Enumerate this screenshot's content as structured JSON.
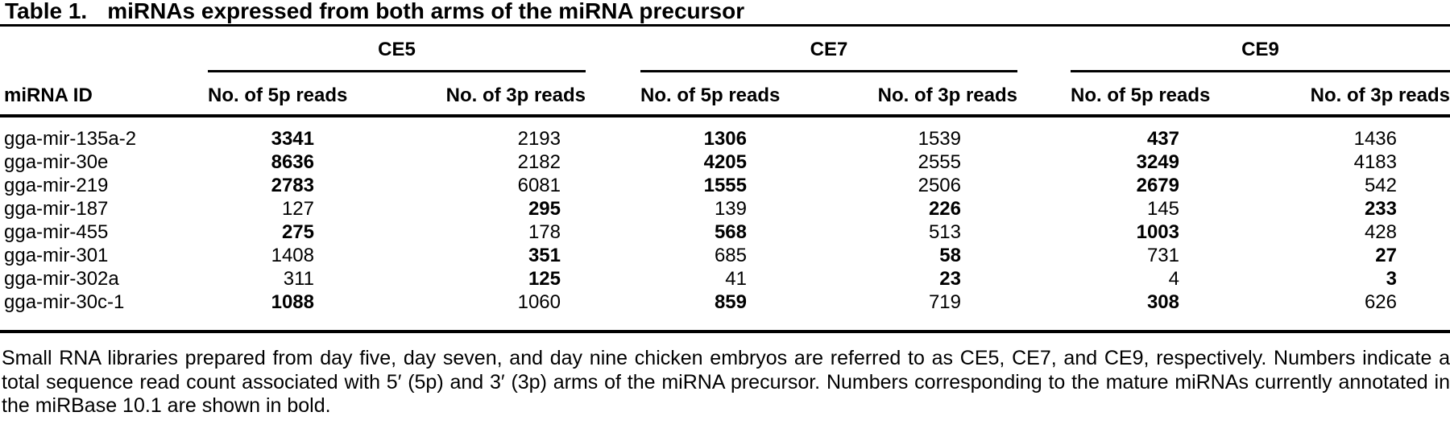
{
  "colors": {
    "text": "#000000",
    "background": "#ffffff",
    "rules": "#000000"
  },
  "title": {
    "label": "Table 1.",
    "text": "miRNAs expressed from both arms of the miRNA precursor"
  },
  "table": {
    "id_header": "miRNA ID",
    "groups": [
      {
        "label": "CE5"
      },
      {
        "label": "CE7"
      },
      {
        "label": "CE9"
      }
    ],
    "subheaders": {
      "reads_5p": "No. of 5p reads",
      "reads_3p": "No. of 3p reads"
    },
    "rows": [
      {
        "id": "gga-mir-135a-2",
        "values": [
          {
            "v": "3341",
            "bold": true
          },
          {
            "v": "2193",
            "bold": false
          },
          {
            "v": "1306",
            "bold": true
          },
          {
            "v": "1539",
            "bold": false
          },
          {
            "v": "437",
            "bold": true
          },
          {
            "v": "1436",
            "bold": false
          }
        ]
      },
      {
        "id": "gga-mir-30e",
        "values": [
          {
            "v": "8636",
            "bold": true
          },
          {
            "v": "2182",
            "bold": false
          },
          {
            "v": "4205",
            "bold": true
          },
          {
            "v": "2555",
            "bold": false
          },
          {
            "v": "3249",
            "bold": true
          },
          {
            "v": "4183",
            "bold": false
          }
        ]
      },
      {
        "id": "gga-mir-219",
        "values": [
          {
            "v": "2783",
            "bold": true
          },
          {
            "v": "6081",
            "bold": false
          },
          {
            "v": "1555",
            "bold": true
          },
          {
            "v": "2506",
            "bold": false
          },
          {
            "v": "2679",
            "bold": true
          },
          {
            "v": "542",
            "bold": false
          }
        ]
      },
      {
        "id": "gga-mir-187",
        "values": [
          {
            "v": "127",
            "bold": false
          },
          {
            "v": "295",
            "bold": true
          },
          {
            "v": "139",
            "bold": false
          },
          {
            "v": "226",
            "bold": true
          },
          {
            "v": "145",
            "bold": false
          },
          {
            "v": "233",
            "bold": true
          }
        ]
      },
      {
        "id": "gga-mir-455",
        "values": [
          {
            "v": "275",
            "bold": true
          },
          {
            "v": "178",
            "bold": false
          },
          {
            "v": "568",
            "bold": true
          },
          {
            "v": "513",
            "bold": false
          },
          {
            "v": "1003",
            "bold": true
          },
          {
            "v": "428",
            "bold": false
          }
        ]
      },
      {
        "id": "gga-mir-301",
        "values": [
          {
            "v": "1408",
            "bold": false
          },
          {
            "v": "351",
            "bold": true
          },
          {
            "v": "685",
            "bold": false
          },
          {
            "v": "58",
            "bold": true
          },
          {
            "v": "731",
            "bold": false
          },
          {
            "v": "27",
            "bold": true
          }
        ]
      },
      {
        "id": "gga-mir-302a",
        "values": [
          {
            "v": "311",
            "bold": false
          },
          {
            "v": "125",
            "bold": true
          },
          {
            "v": "41",
            "bold": false
          },
          {
            "v": "23",
            "bold": true
          },
          {
            "v": "4",
            "bold": false
          },
          {
            "v": "3",
            "bold": true
          }
        ]
      },
      {
        "id": "gga-mir-30c-1",
        "values": [
          {
            "v": "1088",
            "bold": true
          },
          {
            "v": "1060",
            "bold": false
          },
          {
            "v": "859",
            "bold": true
          },
          {
            "v": "719",
            "bold": false
          },
          {
            "v": "308",
            "bold": true
          },
          {
            "v": "626",
            "bold": false
          }
        ]
      }
    ]
  },
  "footnote": "Small RNA libraries prepared from day five, day seven, and day nine chicken embryos are referred to as CE5, CE7, and CE9, respectively. Numbers indicate a total sequence read count associated with 5′ (5p) and 3′ (3p) arms of the miRNA precursor. Numbers corresponding to the mature miRNAs currently annotated in the miRBase 10.1 are shown in bold."
}
